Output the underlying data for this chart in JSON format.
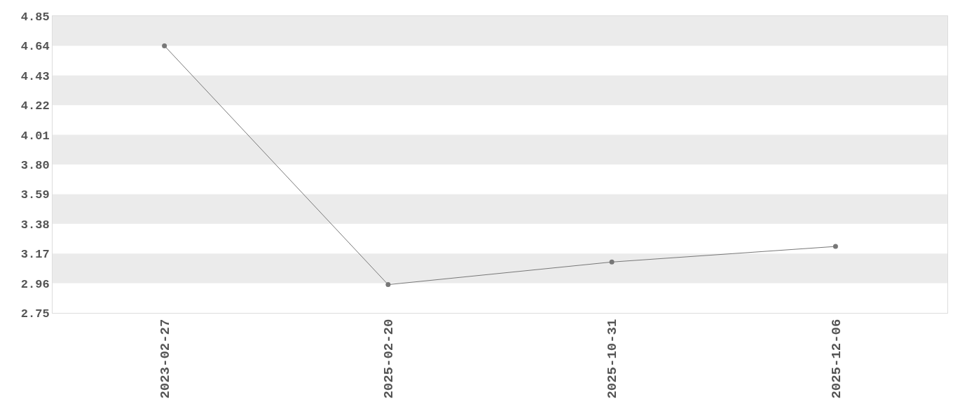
{
  "chart_data": {
    "type": "line",
    "categories": [
      "2023-02-27",
      "2025-02-20",
      "2025-10-31",
      "2025-12-06"
    ],
    "series": [
      {
        "color": "#777777",
        "values": [
          4.64,
          2.95,
          3.11,
          3.22
        ]
      }
    ],
    "ylim": [
      2.75,
      4.85
    ],
    "yticks": [
      2.75,
      2.96,
      3.17,
      3.38,
      3.59,
      {
        "value": 3.8,
        "label": "3.80"
      },
      4.01,
      4.22,
      4.43,
      4.64,
      4.85
    ],
    "bands": [
      {
        "axis": "y",
        "from": 4.64,
        "to": 4.85,
        "color": "#ebebeb"
      },
      {
        "axis": "y",
        "from": 4.22,
        "to": 4.43,
        "color": "#ebebeb"
      },
      {
        "axis": "y",
        "from": 3.8,
        "to": 4.01,
        "color": "#ebebeb"
      },
      {
        "axis": "y",
        "from": 3.38,
        "to": 3.59,
        "color": "#ebebeb"
      },
      {
        "axis": "y",
        "from": 2.96,
        "to": 3.17,
        "color": "#ebebeb"
      }
    ],
    "marker": "circle",
    "line_style": "solid",
    "grid": false
  }
}
